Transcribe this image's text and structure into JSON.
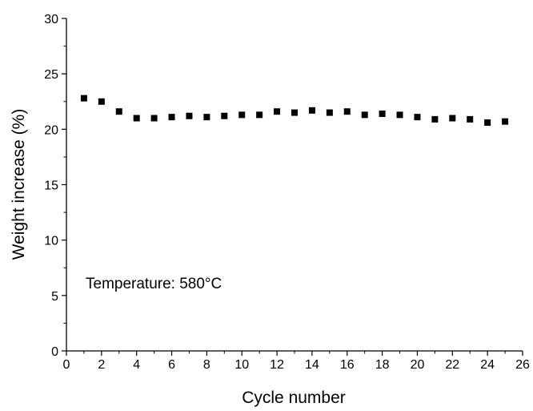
{
  "chart_data": {
    "type": "scatter",
    "title": "",
    "xlabel": "Cycle number",
    "ylabel": "Weight increase (%)",
    "xlim": [
      0,
      26
    ],
    "ylim": [
      0,
      30
    ],
    "x_ticks": [
      0,
      2,
      4,
      6,
      8,
      10,
      12,
      14,
      16,
      18,
      20,
      22,
      24,
      26
    ],
    "y_ticks": [
      0,
      5,
      10,
      15,
      20,
      25,
      30
    ],
    "grid": false,
    "annotation": "Temperature: 580°C",
    "marker": "square",
    "marker_color": "#000000",
    "series": [
      {
        "x": [
          1,
          2,
          3,
          4,
          5,
          6,
          7,
          8,
          9,
          10,
          11,
          12,
          13,
          14,
          15,
          16,
          17,
          18,
          19,
          20,
          21,
          22,
          23,
          24,
          25
        ],
        "y": [
          22.8,
          22.5,
          21.6,
          21.0,
          21.0,
          21.1,
          21.2,
          21.1,
          21.2,
          21.3,
          21.3,
          21.6,
          21.5,
          21.7,
          21.5,
          21.6,
          21.3,
          21.4,
          21.3,
          21.1,
          20.9,
          21.0,
          20.9,
          20.6,
          20.7
        ]
      }
    ]
  }
}
